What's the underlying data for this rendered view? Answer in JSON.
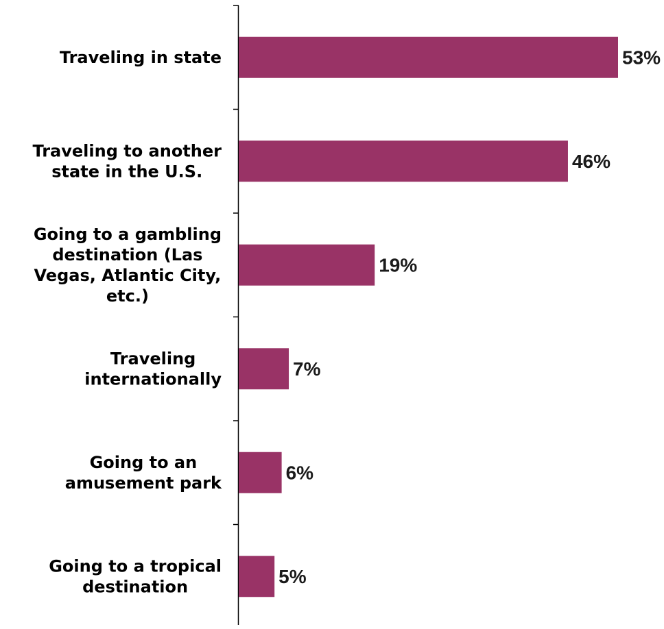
{
  "chart_data": {
    "type": "bar",
    "orientation": "horizontal",
    "categories": [
      [
        "Traveling in state"
      ],
      [
        "Traveling to another",
        "state in the U.S."
      ],
      [
        "Going to a gambling",
        "destination (Las",
        "Vegas, Atlantic City,",
        "etc.)"
      ],
      [
        "Traveling",
        "internationally"
      ],
      [
        "Going to an",
        "amusement park"
      ],
      [
        "Going to a tropical",
        "destination"
      ]
    ],
    "values": [
      53,
      46,
      19,
      7,
      6,
      5
    ],
    "value_labels": [
      "53%",
      "46%",
      "19%",
      "7%",
      "6%",
      "5%"
    ],
    "xlim": [
      0,
      60
    ],
    "bar_color": "#993366",
    "axis_color": "#000000",
    "grid": false,
    "legend": "none"
  }
}
